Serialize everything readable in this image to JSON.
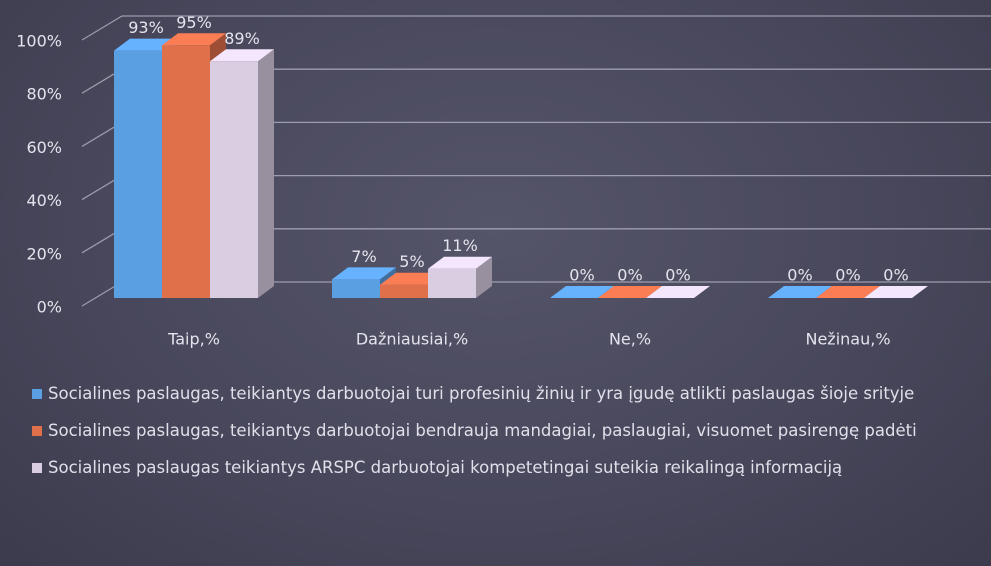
{
  "chart_data": {
    "type": "bar3d",
    "categories": [
      "Taip,%",
      "Dažniausiai,%",
      "Ne,%",
      "Nežinau,%"
    ],
    "series": [
      {
        "name": "Socialines paslaugas, teikiantys darbuotojai turi profesinių žinių ir yra įgudę atlikti paslaugas šioje srityje",
        "color": "#5b9fe3",
        "values": [
          93,
          7,
          0,
          0
        ],
        "value_labels": [
          "93%",
          "7%",
          "0%",
          "0%"
        ]
      },
      {
        "name": "Socialines paslaugas, teikiantys darbuotojai bendrauja mandagiai, paslaugiai, visuomet pasirengę padėti",
        "color": "#e0704a",
        "values": [
          95,
          5,
          0,
          0
        ],
        "value_labels": [
          "95%",
          "5%",
          "0%",
          "0%"
        ]
      },
      {
        "name": "Socialines paslaugas teikiantys ARSPC darbuotojai kompetetingai suteikia reikalingą informaciją",
        "color": "#d9cde2",
        "values": [
          89,
          11,
          0,
          0
        ],
        "value_labels": [
          "89%",
          "11%",
          "0%",
          "0%"
        ]
      }
    ],
    "ylim": [
      0,
      100
    ],
    "yticks": [
      {
        "value": 0,
        "label": "0%"
      },
      {
        "value": 20,
        "label": "20%"
      },
      {
        "value": 40,
        "label": "40%"
      },
      {
        "value": 60,
        "label": "60%"
      },
      {
        "value": 80,
        "label": "80%"
      },
      {
        "value": 100,
        "label": "100%"
      }
    ],
    "grid": true,
    "legend": "bottom"
  }
}
